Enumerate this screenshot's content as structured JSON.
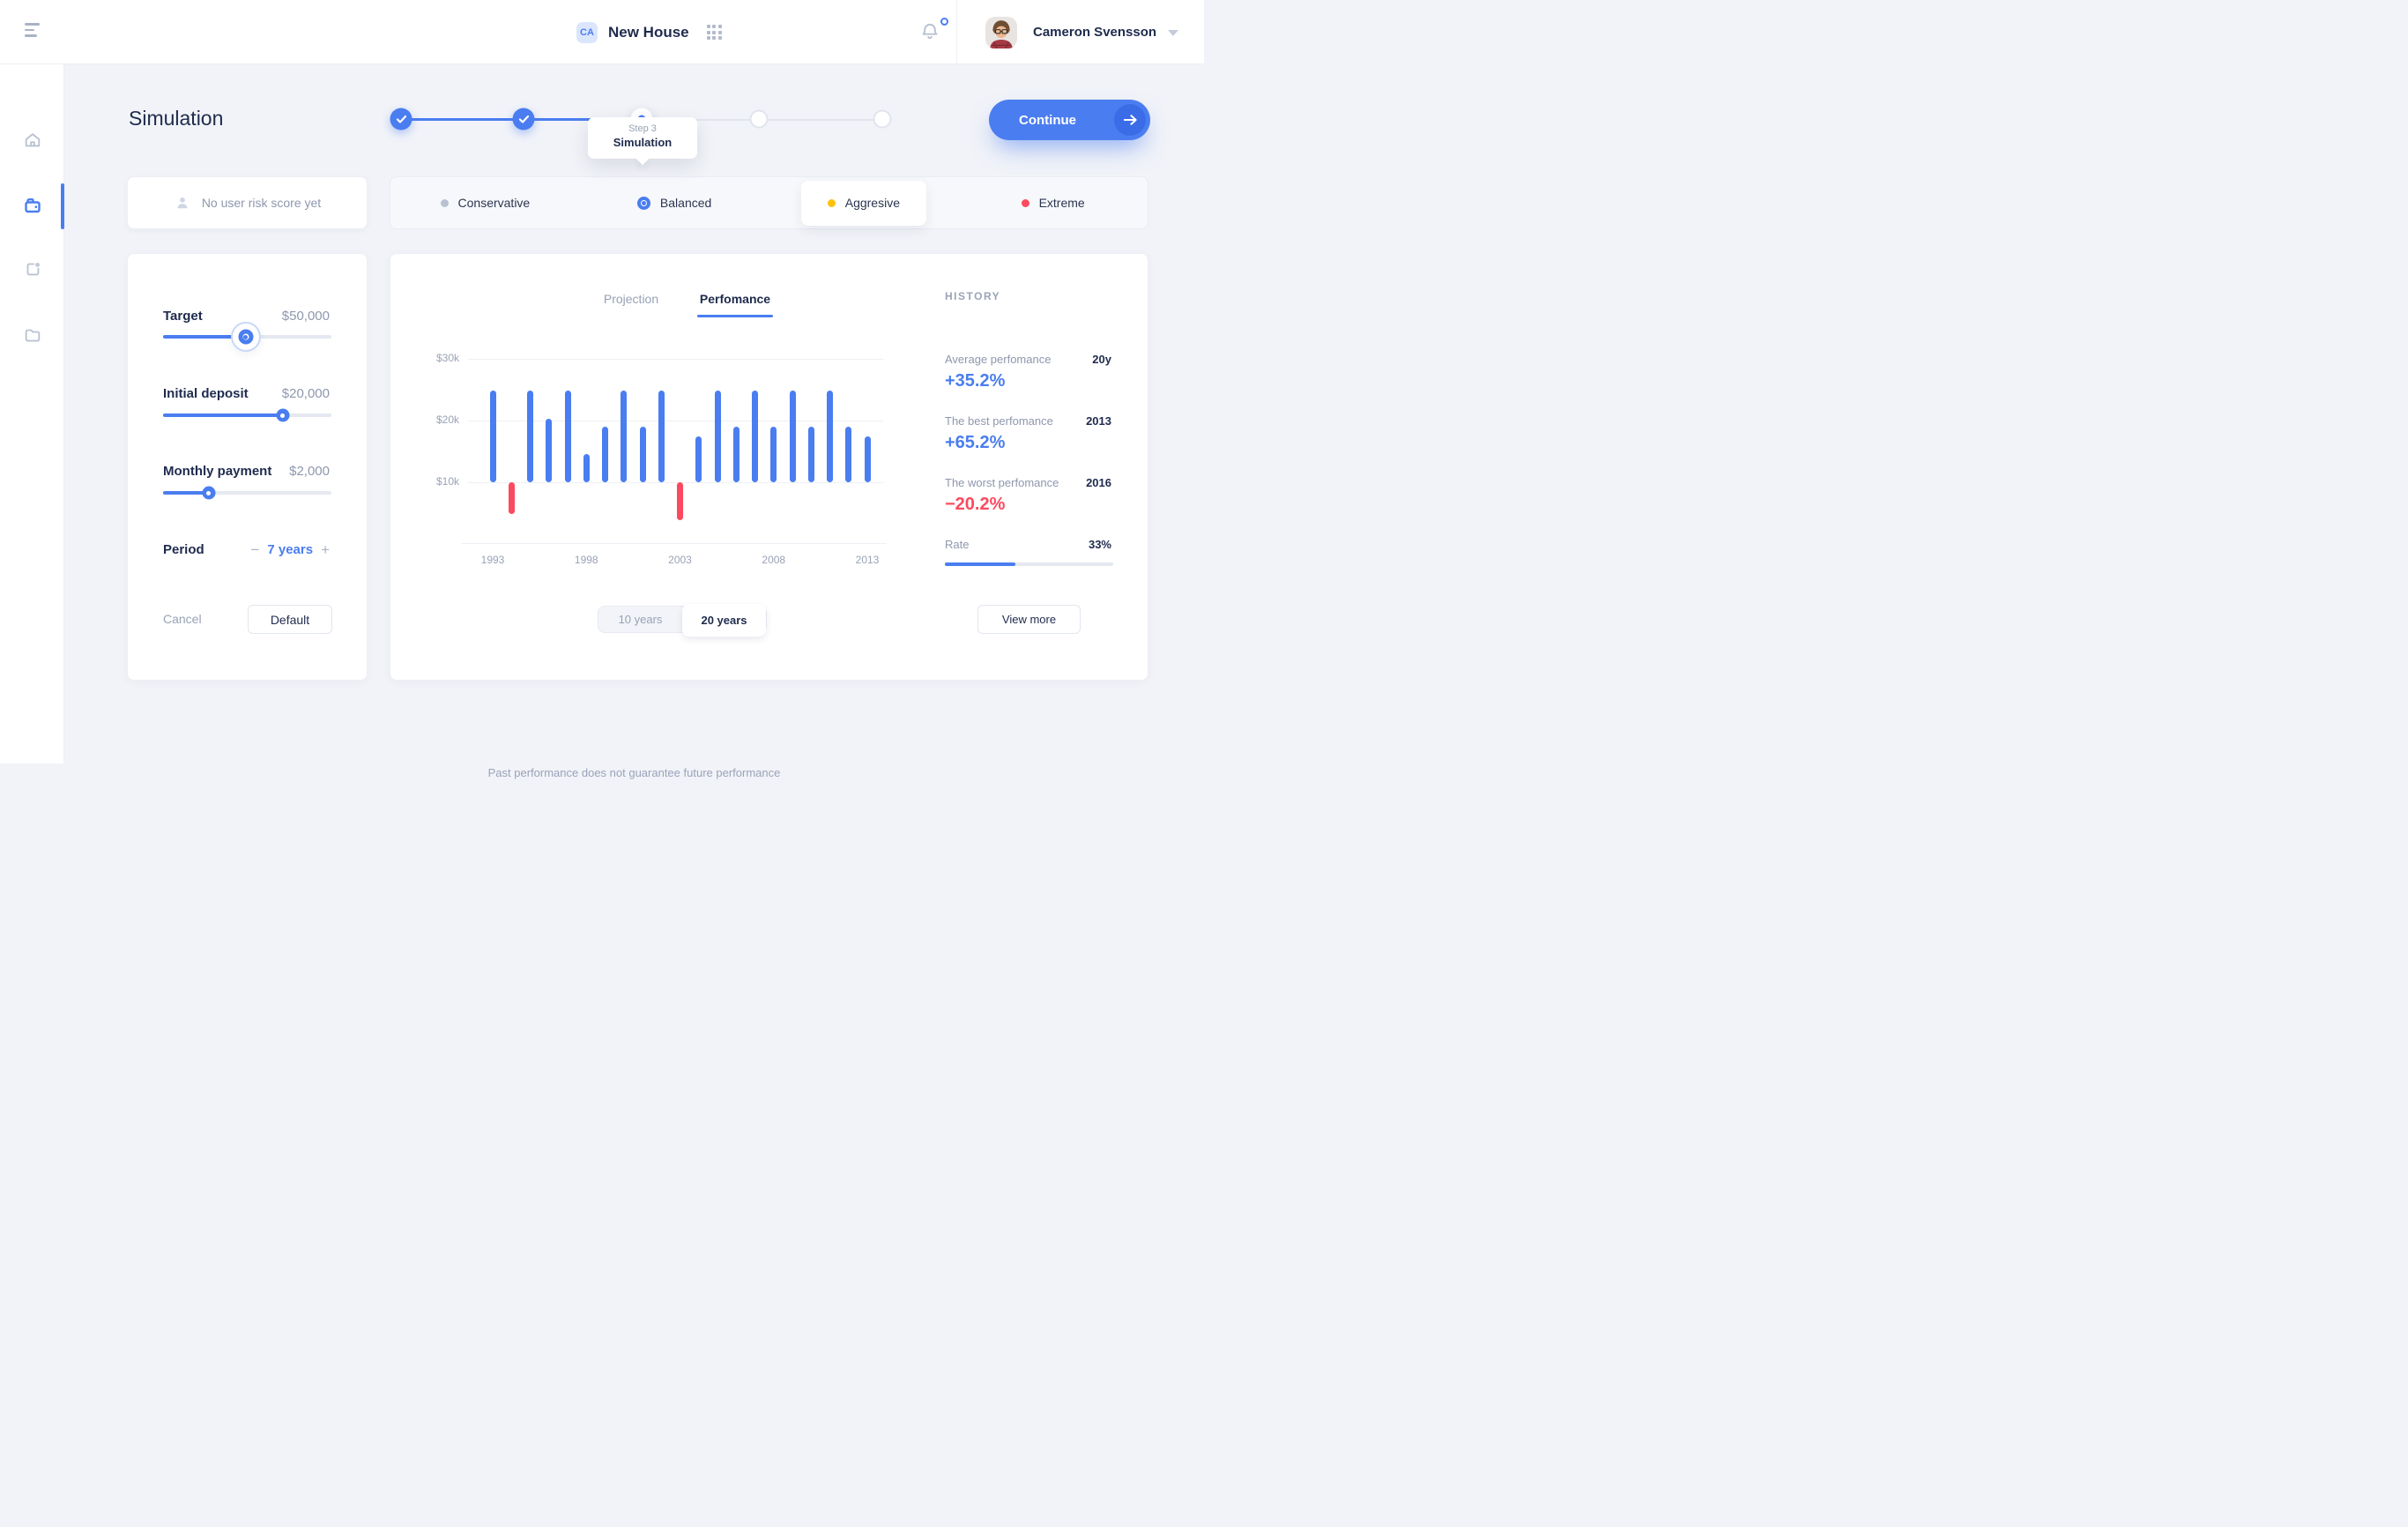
{
  "topbar": {
    "project_badge": "CA",
    "project_title": "New House",
    "user_name": "Cameron Svensson"
  },
  "page": {
    "title": "Simulation",
    "continue_label": "Continue",
    "footer_disclaimer": "Past performance does not guarantee future performance"
  },
  "stepper": {
    "steps": [
      "done",
      "done",
      "active",
      "todo",
      "todo"
    ],
    "tooltip_step": "Step 3",
    "tooltip_label": "Simulation"
  },
  "risk": {
    "empty_label": "No user risk score yet",
    "options": [
      {
        "label": "Conservative",
        "dot_color": "#bac1d1",
        "style": "dot",
        "selected": false
      },
      {
        "label": "Balanced",
        "dot_color": "#4a7df0",
        "style": "radio",
        "selected": true
      },
      {
        "label": "Aggresive",
        "dot_color": "#ffc20d",
        "style": "dot",
        "highlighted": true
      },
      {
        "label": "Extreme",
        "dot_color": "#fb4a5f",
        "style": "dot",
        "selected": false
      }
    ]
  },
  "params": {
    "sliders": [
      {
        "label": "Target",
        "value": "$50,000",
        "percent": 49
      },
      {
        "label": "Initial deposit",
        "value": "$20,000",
        "percent": 71
      },
      {
        "label": "Monthly payment",
        "value": "$2,000",
        "percent": 27
      }
    ],
    "period_label": "Period",
    "minus_label": "−",
    "period_value": "7 years",
    "plus_label": "+",
    "cancel_label": "Cancel",
    "default_label": "Default"
  },
  "chart_card": {
    "tabs": [
      {
        "label": "Projection",
        "active": false
      },
      {
        "label": "Perfomance",
        "active": true
      }
    ],
    "toggle": [
      {
        "label": "10 years",
        "active": false
      },
      {
        "label": "20 years",
        "active": true
      }
    ]
  },
  "chart_data": {
    "type": "bar",
    "title": "Perfomance",
    "x": [
      1993,
      1994,
      1995,
      1996,
      1997,
      1998,
      1999,
      2000,
      2001,
      2002,
      2003,
      2004,
      2005,
      2006,
      2007,
      2008,
      2009,
      2010,
      2011,
      2012,
      2013
    ],
    "values": [
      24.8,
      4.9,
      24.8,
      20.3,
      24.8,
      14.6,
      19.0,
      24.8,
      19.0,
      24.8,
      3.9,
      17.5,
      24.8,
      19.0,
      24.8,
      19.0,
      24.8,
      19.0,
      24.8,
      19.0,
      17.5
    ],
    "baseline": 10,
    "unit": "$k",
    "ylim": [
      0,
      32
    ],
    "grid": true,
    "yticks": [
      {
        "label": "$30k",
        "value": 30
      },
      {
        "label": "$20k",
        "value": 20
      },
      {
        "label": "$10k",
        "value": 10
      }
    ],
    "x_ticks": [
      {
        "label": "1993",
        "index": 0
      },
      {
        "label": "1998",
        "index": 5
      },
      {
        "label": "2003",
        "index": 10
      },
      {
        "label": "2008",
        "index": 15
      },
      {
        "label": "2013",
        "index": 20
      }
    ],
    "bar_color": "#4a7df0",
    "negative_color": "#fb4a5f"
  },
  "history": {
    "title": "HISTORY",
    "rows": [
      {
        "label": "Average perfomance",
        "tag": "20y",
        "value": "+35.2%",
        "tone": "blue"
      },
      {
        "label": "The best perfomance",
        "tag": "2013",
        "value": "+65.2%",
        "tone": "blue"
      },
      {
        "label": "The worst perfomance",
        "tag": "2016",
        "value": "−20.2%",
        "tone": "red"
      }
    ],
    "rate_label": "Rate",
    "rate_value": "33%",
    "rate_percent": 42,
    "view_more_label": "View more"
  },
  "colors": {
    "accent": "#4a7df0",
    "negative": "#fb4a5f",
    "warning": "#ffc20d",
    "neutral_dot": "#bac1d1"
  }
}
